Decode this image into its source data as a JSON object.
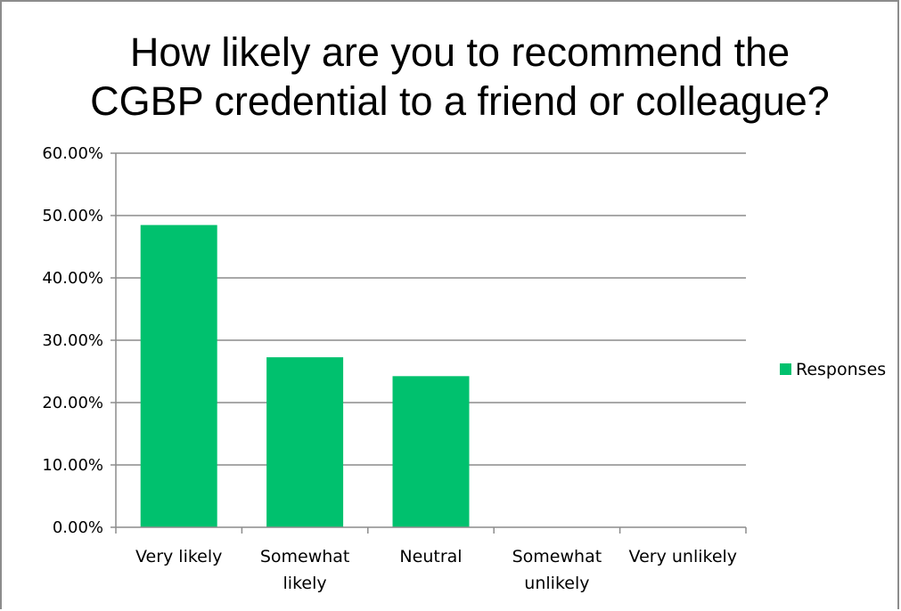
{
  "chart_data": {
    "type": "bar",
    "title_lines": [
      "How likely are you to recommend the",
      "CGBP credential to a friend or colleague?"
    ],
    "categories": [
      [
        "Very likely"
      ],
      [
        "Somewhat",
        "likely"
      ],
      [
        "Neutral"
      ],
      [
        "Somewhat",
        "unlikely"
      ],
      [
        "Very unlikely"
      ]
    ],
    "series": [
      {
        "name": "Responses",
        "color": "#00c16e",
        "values": [
          48.48,
          27.27,
          24.24,
          0,
          0
        ]
      }
    ],
    "ylim": [
      0,
      60
    ],
    "yticks": [
      0,
      10,
      20,
      30,
      40,
      50,
      60
    ],
    "ytick_labels": [
      "0.00%",
      "10.00%",
      "20.00%",
      "30.00%",
      "40.00%",
      "50.00%",
      "60.00%"
    ],
    "grid": true,
    "legend_position": "right"
  }
}
